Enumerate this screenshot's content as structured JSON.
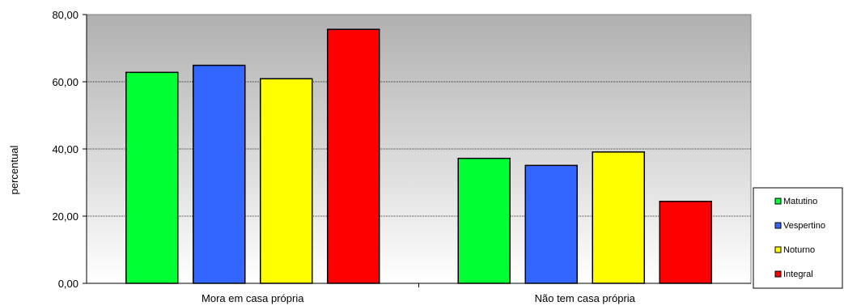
{
  "chart_data": {
    "type": "bar",
    "ylabel": "percentual",
    "xlabel": "",
    "ylim": [
      0,
      80
    ],
    "yticks": [
      0,
      20,
      40,
      60,
      80
    ],
    "ytick_labels": [
      "0,00",
      "20,00",
      "40,00",
      "60,00",
      "80,00"
    ],
    "grid": true,
    "legend_position": "right",
    "categories": [
      "Mora em casa própria",
      "Não tem casa própria"
    ],
    "series": [
      {
        "name": "Matutino",
        "color": "#00ff33",
        "values": [
          62.8,
          37.2
        ]
      },
      {
        "name": "Vespertino",
        "color": "#3366ff",
        "values": [
          64.9,
          35.1
        ]
      },
      {
        "name": "Noturno",
        "color": "#ffff00",
        "values": [
          60.9,
          39.1
        ]
      },
      {
        "name": "Integral",
        "color": "#ff0000",
        "values": [
          75.6,
          24.4
        ]
      }
    ]
  }
}
